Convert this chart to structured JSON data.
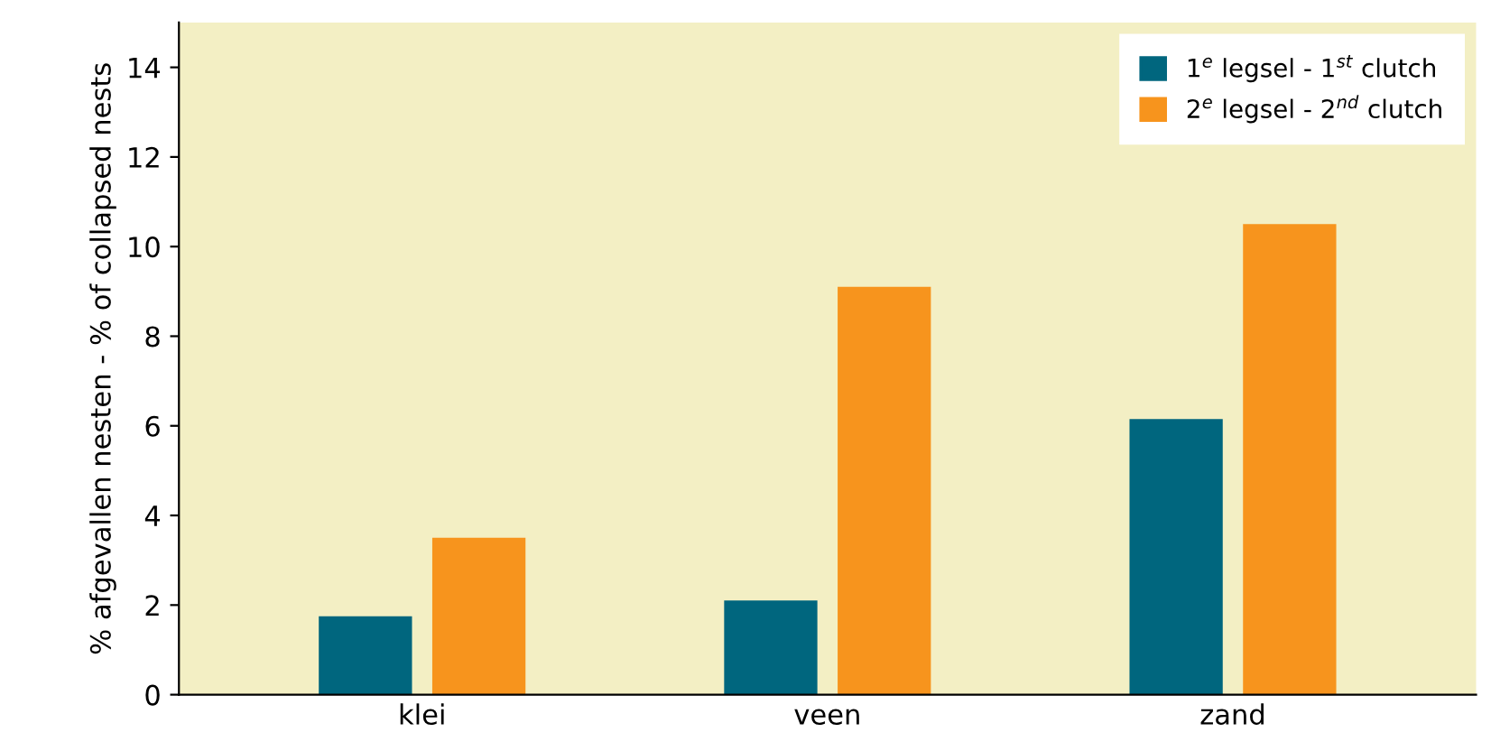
{
  "chart_data": {
    "type": "bar",
    "ylabel": "% afgevallen nesten - % of collapsed nests",
    "categories": [
      "klei",
      "veen",
      "zand"
    ],
    "series": [
      {
        "name": "1$^{e}$ legsel - 1$^{st}$ clutch",
        "color": "#00667e",
        "values": [
          1.75,
          2.1,
          6.15
        ]
      },
      {
        "name": "2$^{e}$ legsel - 2$^{nd}$ clutch",
        "color": "#f7941d",
        "values": [
          3.5,
          9.1,
          10.5
        ]
      }
    ],
    "ylim": [
      0,
      15
    ],
    "yticks": [
      0,
      2,
      4,
      6,
      8,
      10,
      12,
      14
    ],
    "grid": false,
    "legend": "top right"
  }
}
